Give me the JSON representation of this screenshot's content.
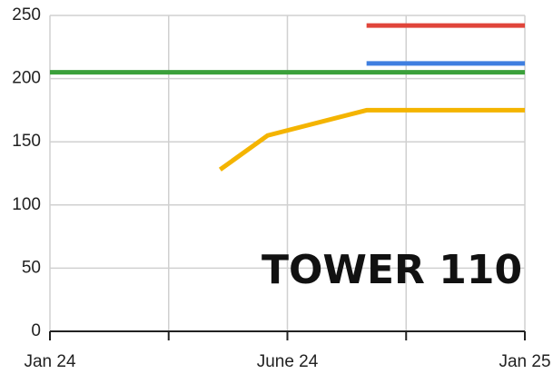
{
  "chart_data": {
    "type": "line",
    "annotation": "TOWER 110",
    "xlim": [
      0,
      12
    ],
    "xticks": [
      {
        "value": 0,
        "label": "Jan 24"
      },
      {
        "value": 3,
        "label": null
      },
      {
        "value": 6,
        "label": "June 24"
      },
      {
        "value": 9,
        "label": null
      },
      {
        "value": 12,
        "label": "Jan 25"
      }
    ],
    "ylim": [
      0,
      250
    ],
    "yticks": [
      0,
      50,
      100,
      150,
      200,
      250
    ],
    "grid": true,
    "series": [
      {
        "color": "#3aa03a",
        "x": [
          0,
          12
        ],
        "values": [
          205,
          205
        ]
      },
      {
        "color": "#e0453a",
        "x": [
          8,
          12
        ],
        "values": [
          242,
          242
        ]
      },
      {
        "color": "#3f7fe0",
        "x": [
          8,
          12
        ],
        "values": [
          212,
          212
        ]
      },
      {
        "color": "#f4b400",
        "x": [
          4.3,
          5.5,
          8,
          12
        ],
        "values": [
          128,
          155,
          175,
          175
        ]
      }
    ]
  }
}
